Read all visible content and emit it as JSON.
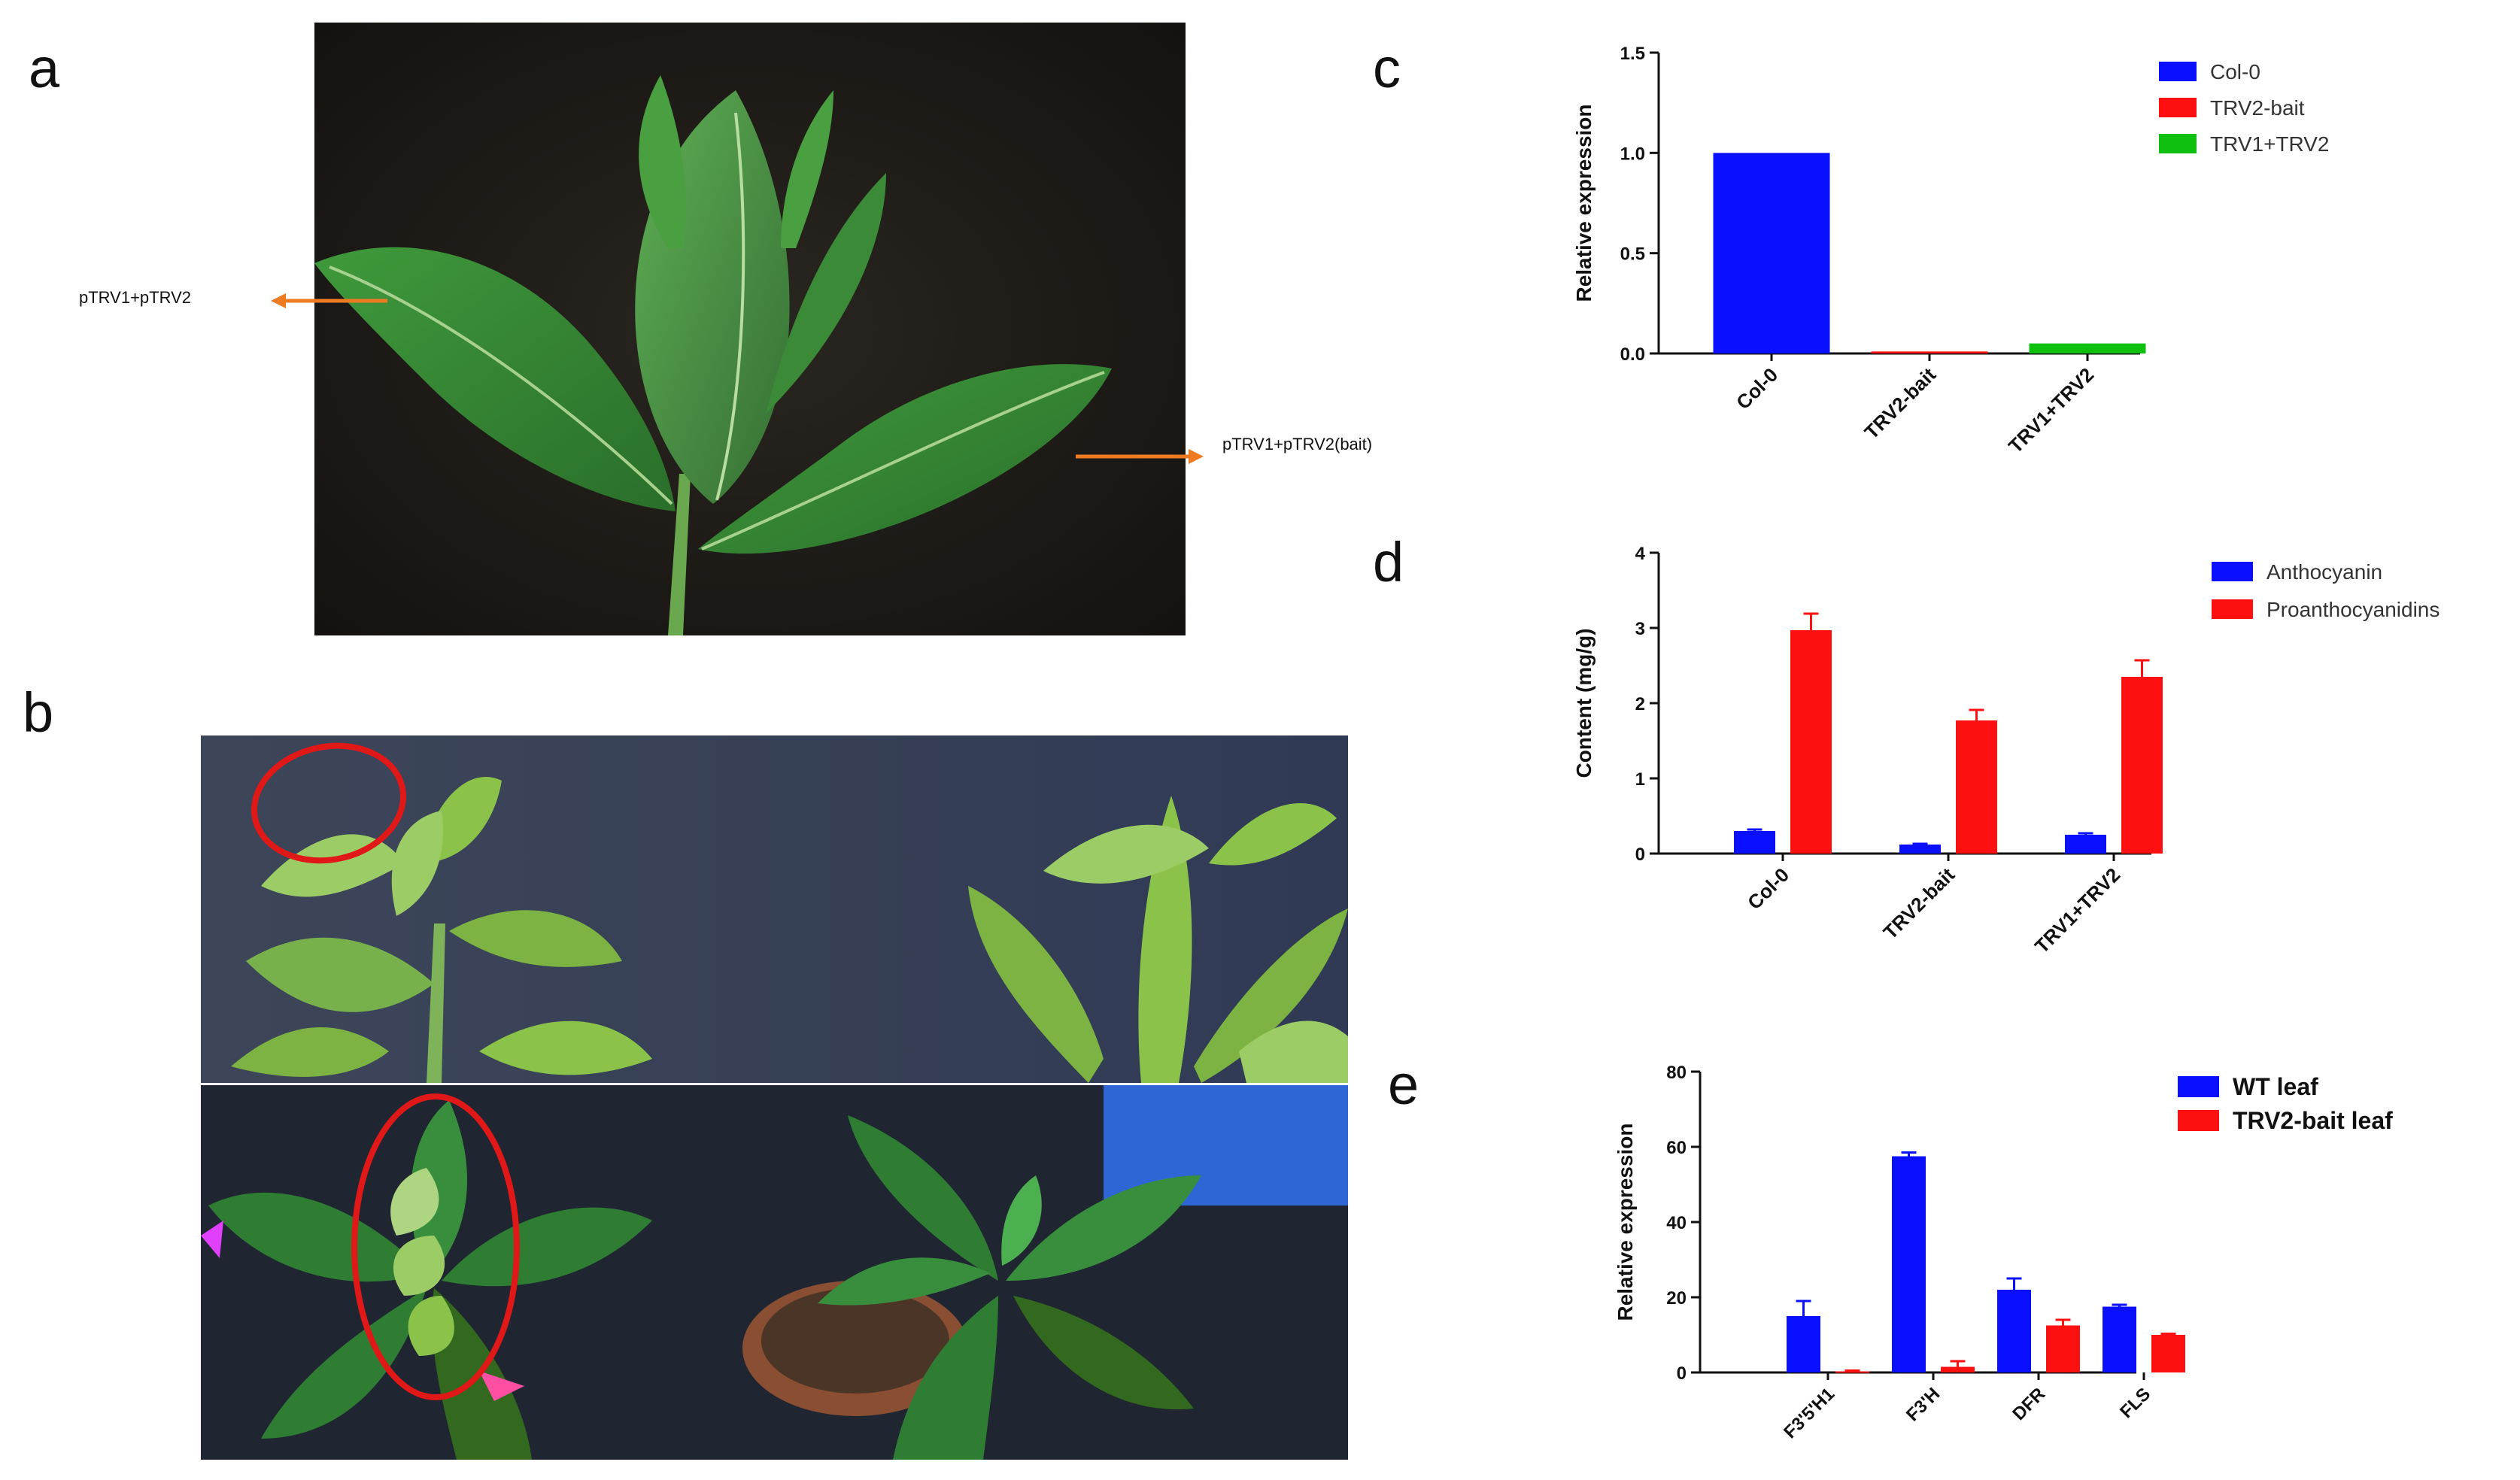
{
  "panels": {
    "a": "a",
    "b": "b",
    "c": "c",
    "d": "d",
    "e": "e"
  },
  "photo_a": {
    "left_label": "pTRV1+pTRV2",
    "right_label": "pTRV1+pTRV2(bait)"
  },
  "chart_data": [
    {
      "id": "c",
      "type": "bar",
      "ylabel": "Relative expression",
      "ylim": [
        0,
        1.5
      ],
      "yticks": [
        "0.0",
        "0.5",
        "1.0",
        "1.5"
      ],
      "categories": [
        "Col-0",
        "TRV2-bait",
        "TRV1+TRV2"
      ],
      "values": [
        1.0,
        0.01,
        0.05
      ],
      "colors": [
        "#0a10ff",
        "#ff1010",
        "#10c010"
      ],
      "legend": [
        {
          "name": "Col-0",
          "color": "#0a10ff"
        },
        {
          "name": "TRV2-bait",
          "color": "#ff1010"
        },
        {
          "name": "TRV1+TRV2",
          "color": "#10c010"
        }
      ],
      "legend_position": "right"
    },
    {
      "id": "d",
      "type": "bar",
      "ylabel": "Content (mg/g)",
      "ylim": [
        0,
        4
      ],
      "yticks": [
        "0",
        "1",
        "2",
        "3",
        "4"
      ],
      "categories": [
        "Col-0",
        "TRV2-bait",
        "TRV1+TRV2"
      ],
      "series": [
        {
          "name": "Anthocyanin",
          "color": "#0a10ff",
          "values": [
            0.3,
            0.12,
            0.25
          ],
          "errors": [
            0.02,
            0.01,
            0.02
          ]
        },
        {
          "name": "Proanthocyanidins",
          "color": "#ff1010",
          "values": [
            2.97,
            1.77,
            2.35
          ],
          "errors": [
            0.22,
            0.14,
            0.22
          ]
        }
      ],
      "legend_position": "right"
    },
    {
      "id": "e",
      "type": "bar",
      "ylabel": "Relative expression",
      "ylim": [
        0,
        80
      ],
      "yticks": [
        "0",
        "20",
        "40",
        "60",
        "80"
      ],
      "categories": [
        "F3'5'H1",
        "F3'H",
        "DFR",
        "FLS"
      ],
      "series": [
        {
          "name": "WT leaf",
          "color": "#0a10ff",
          "values": [
            15,
            57.5,
            22,
            17.5
          ],
          "errors": [
            4,
            1,
            3,
            0.5
          ]
        },
        {
          "name": "TRV2-bait leaf",
          "color": "#ff1010",
          "values": [
            0.3,
            1.5,
            12.5,
            10
          ],
          "errors": [
            0.2,
            1.5,
            1.5,
            0.3
          ]
        }
      ],
      "legend_position": "right"
    }
  ]
}
